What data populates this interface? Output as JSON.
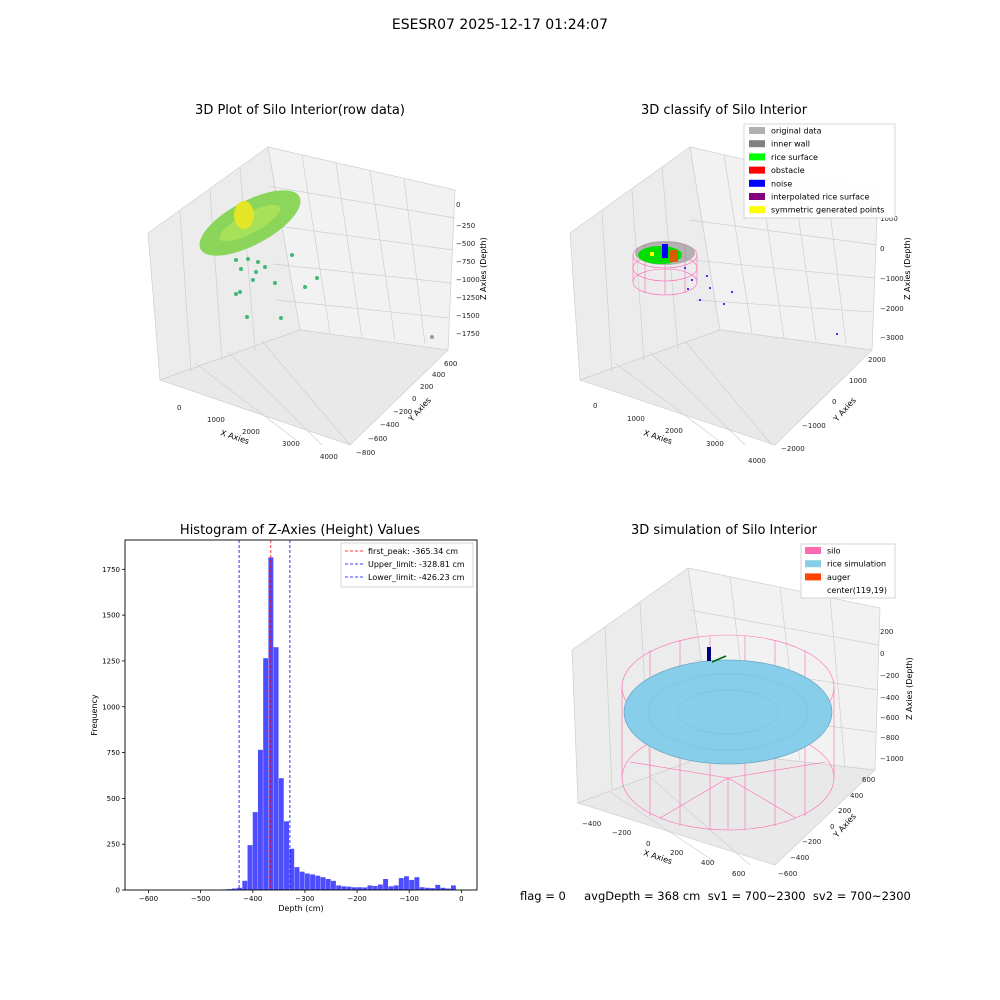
{
  "figure": {
    "suptitle": "ESESR07 2025-12-17 01:24:07",
    "status_line": "flag = 0     avgDepth = 368 cm  sv1 = 700~2300  sv2 = 700~2300"
  },
  "panels": {
    "raw": {
      "title": "3D Plot of Silo Interior(row data)",
      "xlabel": "X Axies",
      "ylabel": "Y Axies",
      "zlabel": "Z Axies (Depth)",
      "xticks": [
        "0",
        "1000",
        "2000",
        "3000",
        "4000"
      ],
      "yticks": [
        "−800",
        "−600",
        "−400",
        "−200",
        "0",
        "200",
        "400",
        "600"
      ],
      "zticks": [
        "0",
        "−250",
        "−500",
        "−750",
        "−1000",
        "−1250",
        "−1500",
        "−1750"
      ]
    },
    "classify": {
      "title": "3D classify of Silo Interior",
      "xlabel": "X Axies",
      "ylabel": "Y Axies",
      "zlabel": "Z Axies (Depth)",
      "xticks": [
        "0",
        "1000",
        "2000",
        "3000",
        "4000"
      ],
      "yticks": [
        "−2000",
        "−1000",
        "0",
        "1000",
        "2000"
      ],
      "zticks": [
        "1000",
        "0",
        "−1000",
        "−2000",
        "−3000"
      ],
      "legend": [
        {
          "label": "original data",
          "color": "#b0b0b0"
        },
        {
          "label": "inner wall",
          "color": "#808080"
        },
        {
          "label": "rice surface",
          "color": "#00ff00"
        },
        {
          "label": "obstacle",
          "color": "#ff0000"
        },
        {
          "label": "noise",
          "color": "#0000ff"
        },
        {
          "label": "interpolated rice surface",
          "color": "#800080"
        },
        {
          "label": "symmetric generated points",
          "color": "#ffff00"
        }
      ]
    },
    "simulation": {
      "title": "3D simulation of Silo Interior",
      "xlabel": "X Axies",
      "ylabel": "Y Axies",
      "zlabel": "Z Axies (Depth)",
      "xticks": [
        "−400",
        "−200",
        "0",
        "200",
        "400",
        "600"
      ],
      "yticks": [
        "−600",
        "−400",
        "−200",
        "0",
        "200",
        "400",
        "600"
      ],
      "zticks": [
        "200",
        "0",
        "−200",
        "−400",
        "−600",
        "−800",
        "−1000"
      ],
      "legend": [
        {
          "label": "silo",
          "color": "#ff69b4"
        },
        {
          "label": "rice simulation",
          "color": "#87ceeb"
        },
        {
          "label": "auger",
          "color": "#ff4500"
        },
        {
          "label": "center(119,19)",
          "color": "none"
        }
      ]
    }
  },
  "chart_data": [
    {
      "type": "scatter",
      "title": "3D Plot of Silo Interior(row data)",
      "xlabel": "X Axies",
      "ylabel": "Y Axies",
      "zlabel": "Z Axies (Depth)",
      "xlim": [
        -500,
        4000
      ],
      "ylim": [
        -800,
        700
      ],
      "zlim": [
        -1900,
        100
      ]
    },
    {
      "type": "scatter",
      "title": "3D classify of Silo Interior",
      "xlabel": "X Axies",
      "ylabel": "Y Axies",
      "zlabel": "Z Axies (Depth)",
      "series": [
        {
          "name": "original data"
        },
        {
          "name": "inner wall"
        },
        {
          "name": "rice surface"
        },
        {
          "name": "obstacle"
        },
        {
          "name": "noise"
        },
        {
          "name": "interpolated rice surface"
        },
        {
          "name": "symmetric generated points"
        }
      ]
    },
    {
      "type": "bar",
      "title": "Histogram of Z-Axies (Height) Values",
      "xlabel": "Depth (cm)",
      "ylabel": "Frequency",
      "xlim": [
        -645,
        30
      ],
      "ylim": [
        0,
        1910
      ],
      "xticks": [
        -600,
        -500,
        -400,
        -300,
        -200,
        -100,
        0
      ],
      "yticks": [
        0,
        250,
        500,
        750,
        1000,
        1250,
        1500,
        1750
      ],
      "bin_width": 10,
      "bin_edges_start": [
        -460,
        -450,
        -440,
        -430,
        -420,
        -410,
        -400,
        -390,
        -380,
        -370,
        -360,
        -350,
        -340,
        -330,
        -320,
        -310,
        -300,
        -290,
        -280,
        -270,
        -260,
        -250,
        -240,
        -230,
        -220,
        -210,
        -200,
        -190,
        -180,
        -170,
        -160,
        -150,
        -140,
        -130,
        -120,
        -110,
        -100,
        -90,
        -80,
        -70,
        -60,
        -50,
        -40,
        -30,
        -20,
        -10
      ],
      "values": [
        3,
        5,
        8,
        12,
        50,
        245,
        425,
        765,
        1265,
        1815,
        1325,
        610,
        375,
        225,
        125,
        100,
        90,
        85,
        78,
        70,
        60,
        50,
        25,
        20,
        18,
        15,
        15,
        14,
        25,
        22,
        30,
        60,
        20,
        25,
        65,
        75,
        55,
        70,
        15,
        12,
        10,
        28,
        12,
        8,
        25,
        0
      ],
      "vlines": [
        {
          "name": "first_peak: -365.34 cm",
          "x": -365.34,
          "color": "#ff0000"
        },
        {
          "name": "Upper_limit: -328.81 cm",
          "x": -328.81,
          "color": "#0000ff"
        },
        {
          "name": "Lower_limit: -426.23 cm",
          "x": -426.23,
          "color": "#0000ff"
        }
      ],
      "legend_position": "upper right"
    },
    {
      "type": "scatter",
      "title": "3D simulation of Silo Interior",
      "xlabel": "X Axies",
      "ylabel": "Y Axies",
      "zlabel": "Z Axies (Depth)",
      "series": [
        {
          "name": "silo"
        },
        {
          "name": "rice simulation"
        },
        {
          "name": "auger"
        }
      ],
      "annotation": "center(119,19)"
    }
  ]
}
